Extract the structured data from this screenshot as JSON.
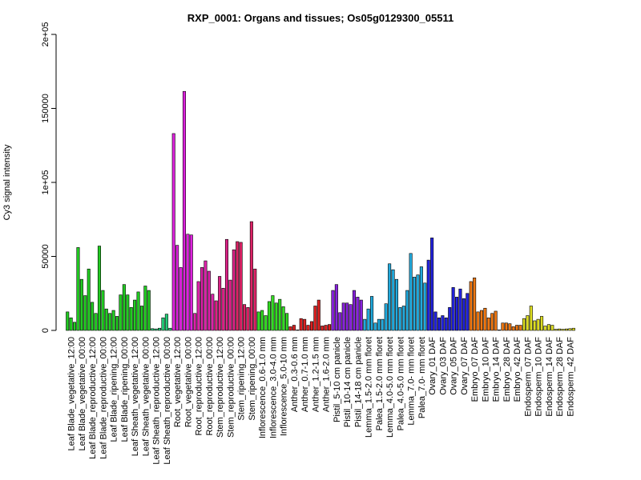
{
  "chart_data": {
    "type": "bar",
    "title": "RXP_0001: Organs and tissues; Os05g0129300_05511",
    "xlabel": "",
    "ylabel": "Cy3 signal intensity",
    "ylim": [
      0,
      200000
    ],
    "y_ticks": [
      {
        "value": 0,
        "label": "0"
      },
      {
        "value": 50000,
        "label": "50000"
      },
      {
        "value": 100000,
        "label": "1e+05"
      },
      {
        "value": 150000,
        "label": "150000"
      },
      {
        "value": 200000,
        "label": "2e+05"
      }
    ],
    "grid": false,
    "legend": "none",
    "groups": [
      {
        "label": "Leaf Blade_vegetative_12:00",
        "color": "#22cc22",
        "values": [
          12500,
          8500,
          5500
        ]
      },
      {
        "label": "Leaf Blade_vegetative_00:00",
        "color": "#22cc22",
        "values": [
          56000,
          34500,
          23500
        ]
      },
      {
        "label": "Leaf Blade_reproductive_12:00",
        "color": "#22cc22",
        "values": [
          41500,
          19000,
          11500
        ]
      },
      {
        "label": "Leaf Blade_reproductive_00:00",
        "color": "#22cc22",
        "values": [
          57000,
          27000,
          14500
        ]
      },
      {
        "label": "Leaf Blade_ripening_12:00",
        "color": "#22cc22",
        "values": [
          11500,
          13500,
          9500
        ]
      },
      {
        "label": "Leaf Blade_ripening_00:00",
        "color": "#22cc22",
        "values": [
          24000,
          31000,
          24000
        ]
      },
      {
        "label": "Leaf Sheath_vegetative_12:00",
        "color": "#22cc22",
        "values": [
          15500,
          20500,
          26000
        ]
      },
      {
        "label": "Leaf Sheath_vegetative_00:00",
        "color": "#22cc22",
        "values": [
          16500,
          30000,
          27000
        ]
      },
      {
        "label": "Leaf Sheath_reproductive_12:00",
        "color": "#22cc77",
        "values": [
          1200,
          1000,
          1500
        ]
      },
      {
        "label": "Leaf Sheath_reproductive_00:00",
        "color": "#22cc77",
        "values": [
          8500,
          11000,
          1500
        ]
      },
      {
        "label": "Root_vegetative_12:00",
        "color": "#dd22dd",
        "values": [
          133000,
          57500,
          42500
        ]
      },
      {
        "label": "Root_vegetative_00:00",
        "color": "#dd22dd",
        "values": [
          161500,
          65000,
          64500
        ]
      },
      {
        "label": "Root_reproductive_12:00",
        "color": "#dd22aa",
        "values": [
          11500,
          33000,
          42500
        ]
      },
      {
        "label": "Root_reproductive_00:00",
        "color": "#dd22aa",
        "values": [
          47000,
          40000,
          24500
        ]
      },
      {
        "label": "Stem_reproductive_12:00",
        "color": "#dd2288",
        "values": [
          20000,
          36500,
          28500
        ]
      },
      {
        "label": "Stem_reproductive_00:00",
        "color": "#dd2288",
        "values": [
          61500,
          34000,
          54500
        ]
      },
      {
        "label": "Stem_ripening_12:00",
        "color": "#dd2266",
        "values": [
          60000,
          59500,
          17500
        ]
      },
      {
        "label": "Stem_ripening_00:00",
        "color": "#dd2266",
        "values": [
          15500,
          73500,
          41500
        ]
      },
      {
        "label": "Inflorescence_0.6-1.0 mm",
        "color": "#33dd22",
        "values": [
          12500,
          13500,
          10000
        ]
      },
      {
        "label": "Inflorescence_3.0-4.0 mm",
        "color": "#33dd22",
        "values": [
          19500,
          23500,
          18500
        ]
      },
      {
        "label": "Inflorescence_5.0-10 mm",
        "color": "#33dd22",
        "values": [
          21000,
          16000,
          11500
        ]
      },
      {
        "label": "Anther_0.3-0.6 mm",
        "color": "#dd2222",
        "values": [
          2500,
          3500,
          0
        ]
      },
      {
        "label": "Anther_0.7-1.0 mm",
        "color": "#dd2222",
        "values": [
          8000,
          7500,
          3500
        ]
      },
      {
        "label": "Anther_1.2-1.5 mm",
        "color": "#dd2222",
        "values": [
          6000,
          16500,
          20500
        ]
      },
      {
        "label": "Anther_1.6-2.0 mm",
        "color": "#dd2222",
        "values": [
          3000,
          3500,
          4000
        ]
      },
      {
        "label": "Pistil_5-10 cm panicle",
        "color": "#8822dd",
        "values": [
          27000,
          31000,
          12000
        ]
      },
      {
        "label": "Pistil_10-14 cm panicle",
        "color": "#8822dd",
        "values": [
          18500,
          18500,
          17500
        ]
      },
      {
        "label": "Pistil_14-18 cm panicle",
        "color": "#8822dd",
        "values": [
          27000,
          22500,
          20500
        ]
      },
      {
        "label": "Lemma_1.5-2.0 mm floret",
        "color": "#22aadd",
        "values": [
          7500,
          14500,
          23000
        ]
      },
      {
        "label": "Palea_1.5-2.0 mm floret",
        "color": "#22aadd",
        "values": [
          5000,
          7500,
          7500
        ]
      },
      {
        "label": "Lemma_4.0-5.0 mm floret",
        "color": "#22aadd",
        "values": [
          18000,
          45000,
          41000
        ]
      },
      {
        "label": "Palea_4.0-5.0 mm floret",
        "color": "#22aadd",
        "values": [
          34500,
          15500,
          16500
        ]
      },
      {
        "label": "Lemma_7.0- mm floret",
        "color": "#22aadd",
        "values": [
          27000,
          52000,
          36000
        ]
      },
      {
        "label": "Palea_7.0- mm floret",
        "color": "#22aadd",
        "values": [
          37500,
          43000,
          32000
        ]
      },
      {
        "label": "Ovary_01 DAF",
        "color": "#2222dd",
        "values": [
          47500,
          62500,
          12500
        ]
      },
      {
        "label": "Ovary_03 DAF",
        "color": "#2222dd",
        "values": [
          8500,
          10000,
          8500
        ]
      },
      {
        "label": "Ovary_05 DAF",
        "color": "#2222dd",
        "values": [
          15500,
          29000,
          22500
        ]
      },
      {
        "label": "Ovary_07 DAF",
        "color": "#2222dd",
        "values": [
          28000,
          21500,
          25000
        ]
      },
      {
        "label": "Embryo_07 DAF",
        "color": "#ee7711",
        "values": [
          33000,
          35500,
          12500
        ]
      },
      {
        "label": "Embryo_10 DAF",
        "color": "#ee7711",
        "values": [
          13500,
          15000,
          8500
        ]
      },
      {
        "label": "Embryo_14 DAF",
        "color": "#ee7711",
        "values": [
          11500,
          13000,
          0
        ]
      },
      {
        "label": "Embryo_28 DAF",
        "color": "#ee7711",
        "values": [
          5000,
          5000,
          4500
        ]
      },
      {
        "label": "Embryo_42 DAF",
        "color": "#ee7711",
        "values": [
          2500,
          3500,
          3500
        ]
      },
      {
        "label": "Endosperm_07 DAF",
        "color": "#dddd22",
        "values": [
          8000,
          10000,
          16500
        ]
      },
      {
        "label": "Endosperm_10 DAF",
        "color": "#dddd22",
        "values": [
          6500,
          7500,
          9500
        ]
      },
      {
        "label": "Endosperm_14 DAF",
        "color": "#dddd22",
        "values": [
          3000,
          4000,
          3500
        ]
      },
      {
        "label": "Endosperm_28 DAF",
        "color": "#dddd22",
        "values": [
          800,
          1000,
          800
        ]
      },
      {
        "label": "Endosperm_42 DAF",
        "color": "#dddd22",
        "values": [
          1000,
          1200,
          1500
        ]
      }
    ],
    "shown_labels": [
      "Leaf Blade_vegetative_12:00",
      "Leaf Blade_vegetative_00:00",
      "Leaf Blade_reproductive_12:00",
      "Leaf Blade_reproductive_00:00",
      "Leaf Blade_ripening_12:00",
      "Leaf Blade_ripening_00:00",
      "Leaf Sheath_vegetative_12:00",
      "Leaf Sheath_vegetative_00:00",
      "Leaf Sheath_reproductive_12:00",
      "Leaf Sheath_reproductive_00:00",
      "Root_vegetative_12:00",
      "Root_vegetative_00:00",
      "Root_reproductive_12:00",
      "Root_reproductive_00:00",
      "Stem_reproductive_12:00",
      "Stem_reproductive_00:00",
      "Stem_ripening_12:00",
      "Stem_ripening_00:00",
      "Inflorescence_0.6-1.0 mm",
      "Inflorescence_3.0-4.0 mm",
      "Inflorescence_5.0-10 mm",
      "Anther_0.3-0.6 mm",
      "Anther_0.7-1.0 mm",
      "Anther_1.2-1.5 mm",
      "Anther_1.6-2.0 mm",
      "Pistil_5-10 cm panicle",
      "Pistil_10-14 cm panicle",
      "Pistil_14-18 cm panicle",
      "Lemma_1.5-2.0 mm floret",
      "Palea_1.5-2.0 mm floret",
      "Lemma_4.0-5.0 mm floret",
      "Palea_4.0-5.0 mm floret",
      "Lemma_7.0- mm floret",
      "Palea_7.0- mm floret",
      "Ovary_01 DAF",
      "Ovary_03 DAF",
      "Ovary_05 DAF",
      "Ovary_07 DAF",
      "Embryo_07 DAF",
      "Embryo_10 DAF",
      "Embryo_14 DAF",
      "Embryo_28 DAF",
      "Embryo_42 DAF",
      "Endosperm_07 DAF",
      "Endosperm_10 DAF",
      "Endosperm_14 DAF",
      "Endosperm_28 DAF",
      "Endosperm_42 DAF"
    ]
  }
}
